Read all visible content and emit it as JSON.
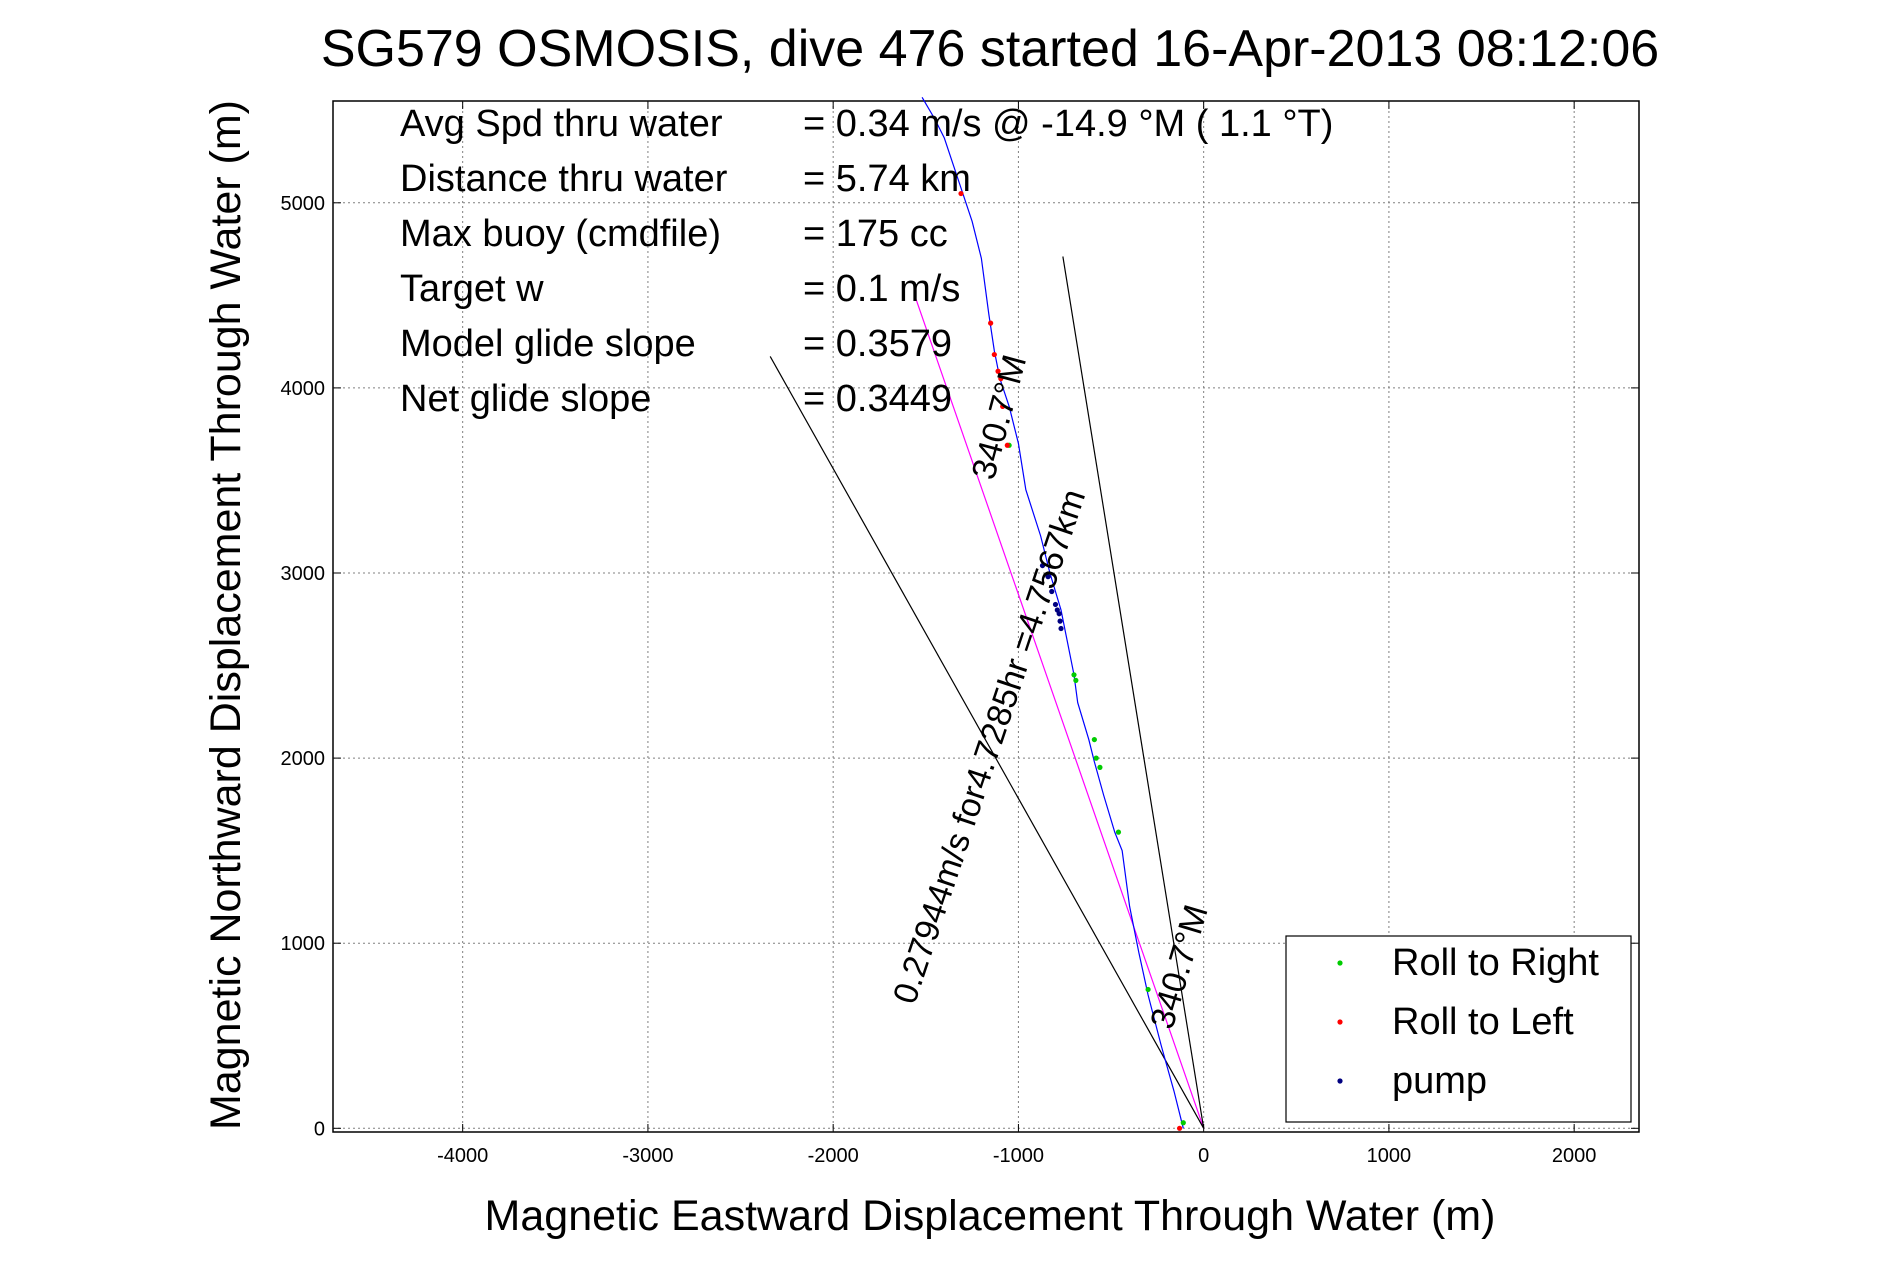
{
  "chart_data": {
    "type": "scatter",
    "title": "SG579 OSMOSIS, dive 476 started 16-Apr-2013 08:12:06",
    "xlabel": "Magnetic Eastward Displacement Through Water (m)",
    "ylabel": "Magnetic Northward Displacement Through Water (m)",
    "xlim": [
      -4700,
      2350
    ],
    "ylim": [
      -20,
      5550
    ],
    "xticks": [
      -4000,
      -3000,
      -2000,
      -1000,
      0,
      1000,
      2000
    ],
    "yticks": [
      0,
      1000,
      2000,
      3000,
      4000,
      5000
    ],
    "grid": true,
    "legend_position": "bottom-right",
    "stats": [
      {
        "label": "Avg Spd thru water",
        "value": "=  0.34 m/s @ -14.9 °M (  1.1 °T)"
      },
      {
        "label": "Distance thru water",
        "value": "=  5.74 km"
      },
      {
        "label": "Max buoy (cmdfile)",
        "value": "= 175 cc"
      },
      {
        "label": "Target w",
        "value": "= 0.1 m/s"
      },
      {
        "label": "Model glide slope",
        "value": "= 0.3579"
      },
      {
        "label": "Net glide slope",
        "value": "= 0.3449"
      }
    ],
    "annotations": {
      "bearing_near": "340.7°M",
      "speed_text": "0.27944m/s for4.7285hr =4.7567km",
      "bearing_far": "340.7°M"
    },
    "track": {
      "name": "track",
      "color": "#0000ff",
      "x": [
        -110,
        -160,
        -230,
        -300,
        -350,
        -400,
        -440,
        -480,
        -540,
        -590,
        -620,
        -680,
        -700,
        -740,
        -770,
        -830,
        -880,
        -960,
        -1000,
        -1050,
        -1100,
        -1130,
        -1160,
        -1200,
        -1250,
        -1300,
        -1350,
        -1400,
        -1450,
        -1520
      ],
      "y": [
        0,
        200,
        450,
        720,
        950,
        1200,
        1500,
        1600,
        1800,
        1980,
        2100,
        2300,
        2450,
        2650,
        2800,
        3000,
        3200,
        3450,
        3700,
        3900,
        4050,
        4200,
        4400,
        4700,
        4900,
        5050,
        5200,
        5350,
        5450,
        5570
      ]
    },
    "reference_lines": [
      {
        "name": "course-line",
        "color": "#ff00ff",
        "x": [
          0,
          -1560
        ],
        "y": [
          0,
          4500
        ]
      },
      {
        "name": "wedge-left",
        "color": "#000000",
        "x": [
          0,
          -2340
        ],
        "y": [
          0,
          4170
        ]
      },
      {
        "name": "wedge-right",
        "color": "#000000",
        "x": [
          0,
          -760
        ],
        "y": [
          0,
          4710
        ]
      }
    ],
    "series": [
      {
        "name": "Roll to Right",
        "color": "#00cc00",
        "marker": "dot",
        "x": [
          -110,
          -300,
          -460,
          -560,
          -580,
          -590,
          -690,
          -700,
          -1050
        ],
        "y": [
          30,
          750,
          1600,
          1950,
          2000,
          2100,
          2420,
          2450,
          3690
        ]
      },
      {
        "name": "Roll to Left",
        "color": "#ff0000",
        "marker": "dot",
        "x": [
          -130,
          -1060,
          -1085,
          -1095,
          -1110,
          -1130,
          -1150,
          -1310
        ],
        "y": [
          0,
          3690,
          3900,
          4050,
          4090,
          4180,
          4350,
          5050
        ]
      },
      {
        "name": "pump",
        "color": "#000080",
        "marker": "dot",
        "x": [
          -770,
          -775,
          -780,
          -790,
          -800,
          -820,
          -840,
          -870
        ],
        "y": [
          2700,
          2740,
          2780,
          2800,
          2830,
          2900,
          2980,
          3040
        ]
      }
    ]
  }
}
